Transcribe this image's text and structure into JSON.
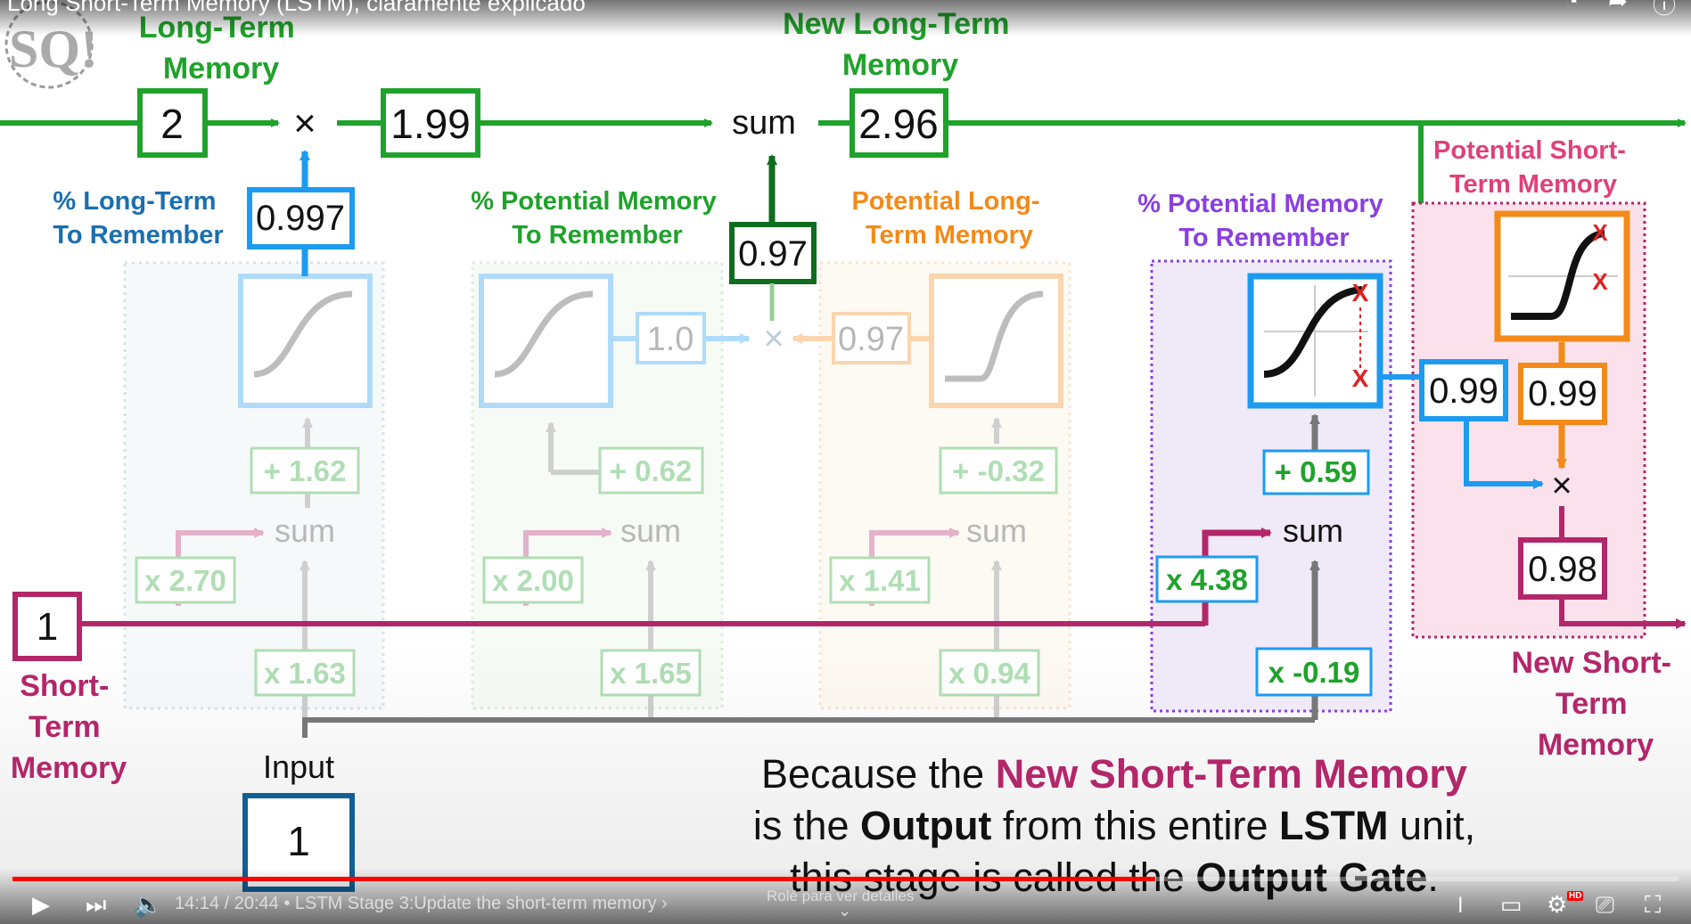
{
  "video": {
    "title": "Long Short-Term Memory (LSTM), claramente explicado",
    "time": "14:14 / 20:44",
    "chapter": "• LSTM Stage 3:Update the short-term memory ›",
    "hint": "Rolé para ver detalles",
    "progress_fraction": 0.686,
    "icons": {
      "play": "play-icon",
      "next": "next-icon",
      "volume": "volume-icon",
      "autoplay": "autoplay-toggle-icon",
      "subtitles": "subtitles-icon",
      "settings": "gear-icon",
      "cast": "cast-icon",
      "fullscreen": "fullscreen-icon"
    },
    "hd_badge": "HD"
  },
  "diagram": {
    "labels": {
      "long_term_memory": [
        "Long-Term",
        "Memory"
      ],
      "new_long_term_memory": [
        "New Long-Term",
        "Memory"
      ],
      "pct_long_term": [
        "% Long-Term",
        "To Remember"
      ],
      "pct_potential_1": [
        "% Potential Memory",
        "To Remember"
      ],
      "potential_long_term": [
        "Potential Long-",
        "Term Memory"
      ],
      "pct_potential_2": [
        "% Potential Memory",
        "To Remember"
      ],
      "potential_short_term": [
        "Potential Short-",
        "Term Memory"
      ],
      "short_term_memory": [
        "Short-",
        "Term",
        "Memory"
      ],
      "new_short_term_memory": [
        "New Short-",
        "Term",
        "Memory"
      ],
      "input": "Input"
    },
    "values": {
      "long_term_in": "2",
      "after_forget": "1.99",
      "new_long_term": "2.96",
      "forget_gate_pct": "0.997",
      "potential_sum": "0.97",
      "short_term_in": "1",
      "input_val": "1",
      "faded_1": "1.0",
      "faded_2": "0.97",
      "faded_bias_1": "+ 1.62",
      "faded_bias_2": "+ 0.62",
      "faded_bias_3": "+ -0.32",
      "faded_w_st_1": "x 2.70",
      "faded_w_st_2": "x 2.00",
      "faded_w_st_3": "x 1.41",
      "faded_w_in_1": "x 1.63",
      "faded_w_in_2": "x 1.65",
      "faded_w_in_3": "x 0.94",
      "out_bias": "+ 0.59",
      "out_w_st": "x 4.38",
      "out_w_in": "x -0.19",
      "out_gate_pct": "0.99",
      "tanh_out": "0.99",
      "new_short_term": "0.98"
    },
    "symbols": {
      "times": "×",
      "sum": "sum",
      "x_mark": "X"
    },
    "colors": {
      "green": "#1fa22b",
      "dark_green": "#0e6e1d",
      "magenta": "#b3266a",
      "blue": "#1d9bf0",
      "dark_blue": "#115f97",
      "orange": "#f28a1a",
      "purple": "#8a3fe0",
      "pink": "#e0407a",
      "gray": "#777777"
    }
  },
  "caption": {
    "line1_a": "Because the ",
    "line1_b": "New Short-Term Memory",
    "line2_a": "is the ",
    "line2_b": "Output",
    "line2_c": " from this entire ",
    "line2_d": "LSTM",
    "line2_e": " unit,",
    "line3_a": "this stage is called the ",
    "line3_b": "Output Gate",
    "line3_c": "."
  }
}
